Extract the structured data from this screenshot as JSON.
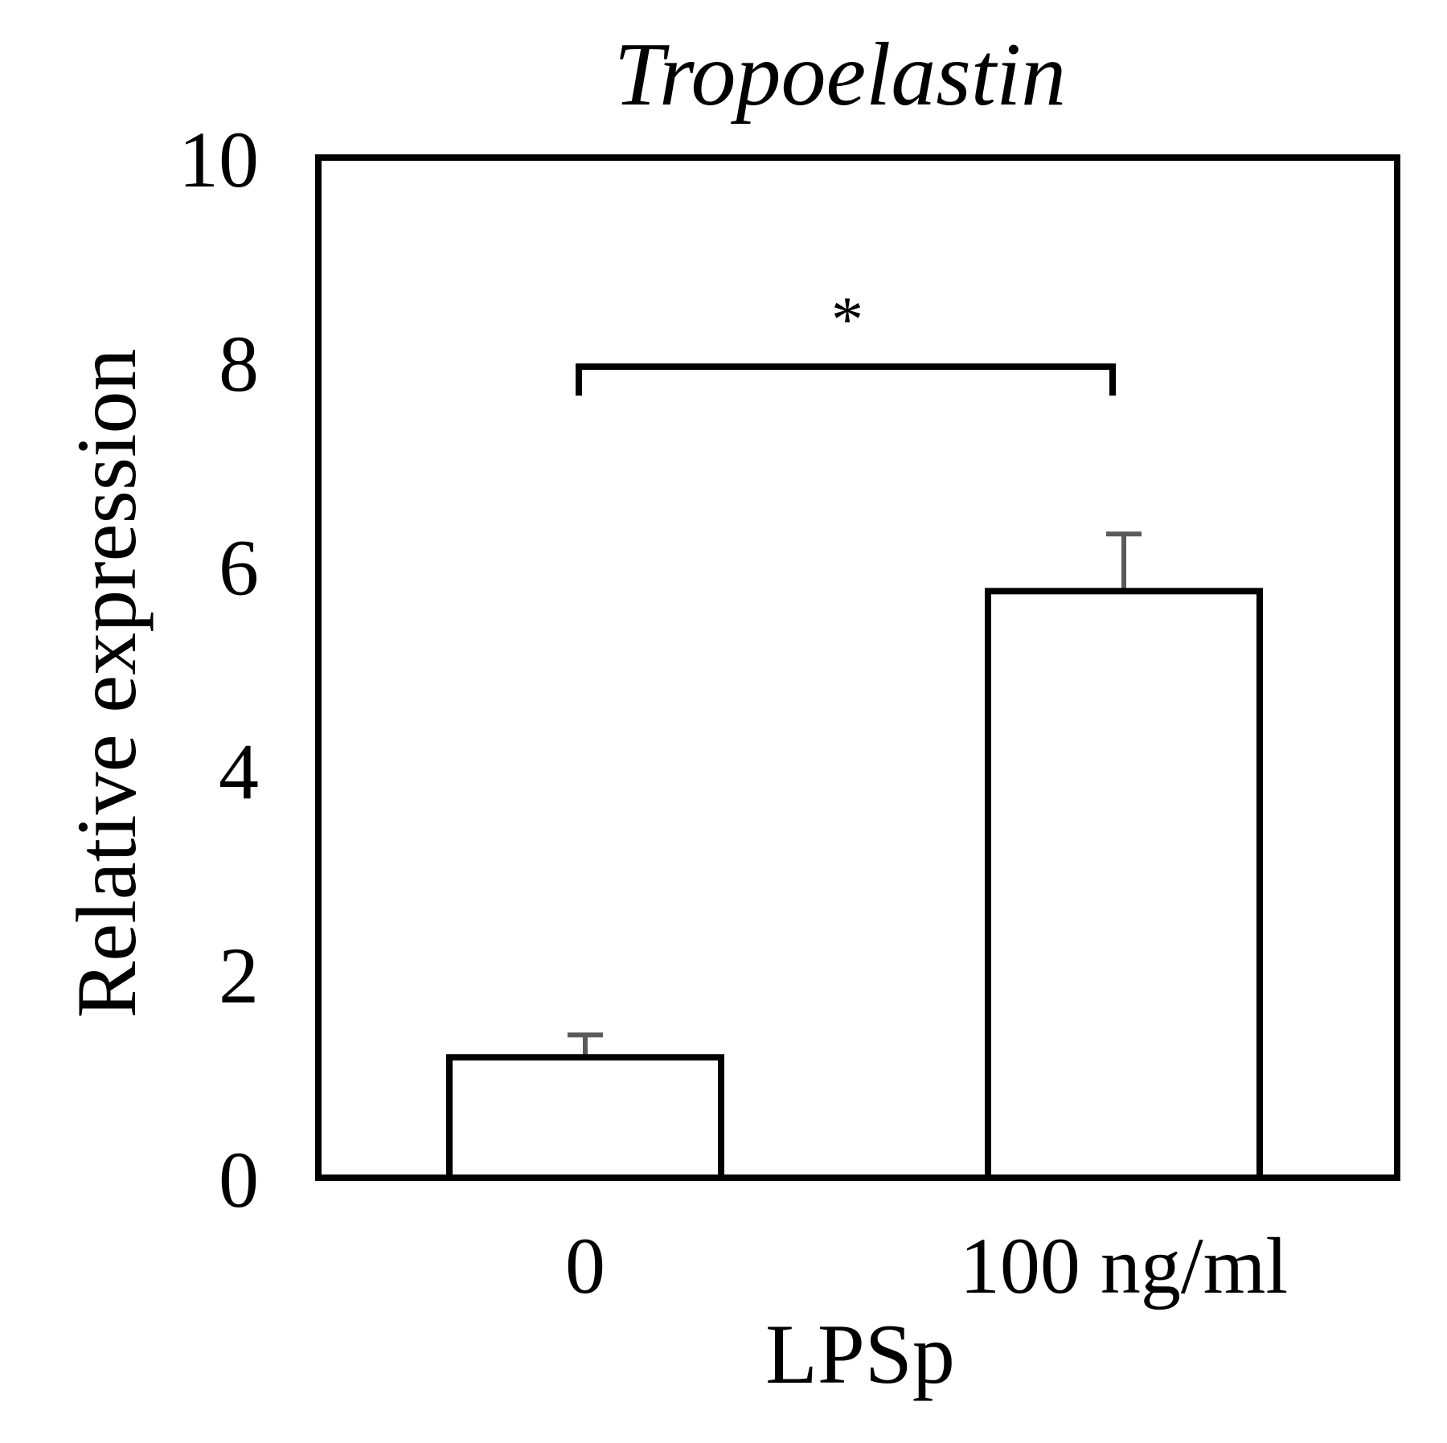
{
  "chart_data": {
    "type": "bar",
    "title": "Tropoelastin",
    "xlabel": "LPSp",
    "ylabel": "Relative expression",
    "categories": [
      "0",
      "100 ng/ml"
    ],
    "values": [
      1.18,
      5.75
    ],
    "errors": [
      0.22,
      0.56
    ],
    "ylim": [
      0,
      10
    ],
    "yticks": [
      "0",
      "2",
      "4",
      "6",
      "8",
      "10"
    ],
    "grid": false,
    "legend": "none",
    "significance": {
      "between": [
        0,
        1
      ],
      "level": 7.95,
      "label": "*"
    },
    "colors": {
      "bar_fill": "#ffffff",
      "bar_stroke": "#000000",
      "error_bar": "#5a5a5a",
      "frame": "#000000"
    }
  }
}
